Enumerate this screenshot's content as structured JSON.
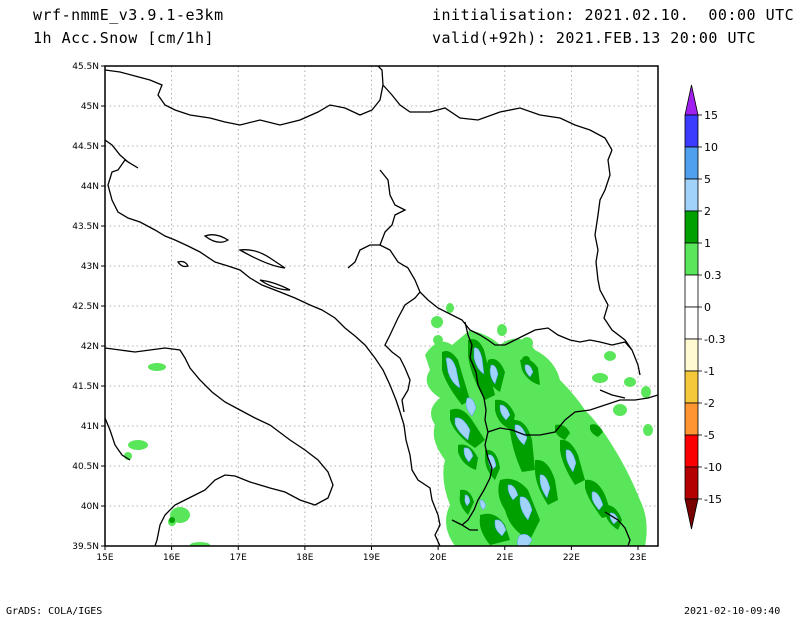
{
  "header": {
    "model": "wrf-nmmE_v3.9.1-e3km",
    "variable": "1h Acc.Snow [cm/1h]",
    "init": "initialisation: 2021.02.10.  00:00 UTC",
    "valid": "valid(+92h): 2021.FEB.13 20:00 UTC"
  },
  "map": {
    "lon_range": [
      15,
      23.3
    ],
    "lat_range": [
      39.5,
      45.5
    ],
    "lon_ticks": [
      "15E",
      "16E",
      "17E",
      "18E",
      "19E",
      "20E",
      "21E",
      "22E",
      "23E"
    ],
    "lat_ticks": [
      "39.5N",
      "40N",
      "40.5N",
      "41N",
      "41.5N",
      "42N",
      "42.5N",
      "43N",
      "43.5N",
      "44N",
      "44.5N",
      "45N",
      "45.5N"
    ],
    "grid": true
  },
  "legend": {
    "labels": [
      "15",
      "10",
      "5",
      "2",
      "1",
      "0.3",
      "0",
      "-0.3",
      "-1",
      "-2",
      "-5",
      "-10",
      "-15"
    ],
    "colors": [
      "#a020f0",
      "#3c3cff",
      "#50a0f0",
      "#a0d2fa",
      "#00a000",
      "#5ae65a",
      "#ffffff",
      "#ffffff",
      "#fffad2",
      "#f5c83c",
      "#ff9632",
      "#fa0000",
      "#b40000",
      "#780000"
    ]
  },
  "footer": {
    "left": "GrADS: COLA/IGES",
    "right": "2021-02-10-09:40"
  }
}
